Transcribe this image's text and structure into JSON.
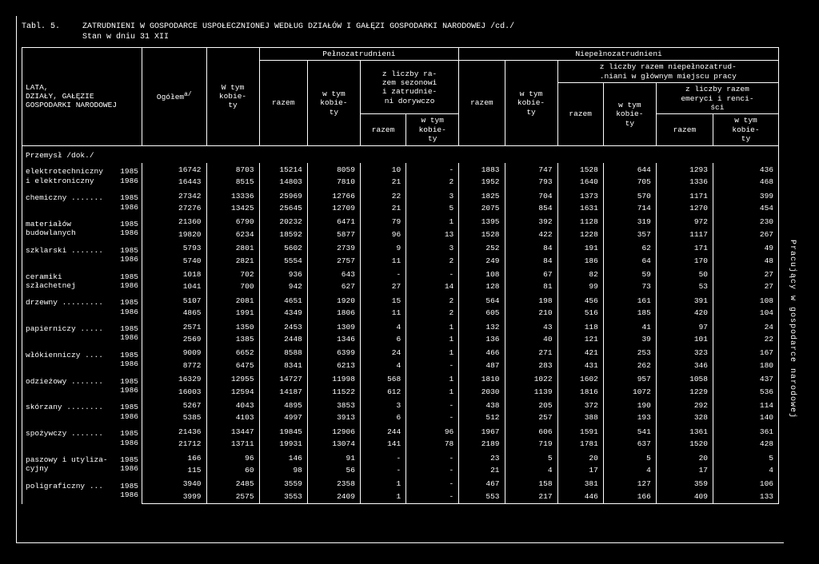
{
  "title_label": "Tabl. 5.",
  "title_text": "ZATRUDNIENI W GOSPODARCE USPOŁECZNIONEJ WEDŁUG DZIAŁÓW I GAŁĘZI GOSPODARKI NARODOWEJ /cd./\nStan w dniu 31 XII",
  "vertical_text": "Pracujący w gospodarce narodowej",
  "stub_header": "LATA,\nDZIAŁY, GAŁĘZIE\nGOSPODARKI NARODOWEJ",
  "h_ogolem": "Ogółem",
  "h_ogolem_sup": "a/",
  "h_wtym_kobiety": "W tym\nkobie-\nty",
  "h_pelno": "Pełnozatrudnieni",
  "h_niepelno": "Niepełnozatrudnieni",
  "h_razem": "razem",
  "h_wtym_kob": "w tym\nkobie-\nty",
  "h_zliczby_sez": "z liczby ra-\nzem sezonowi\ni zatrudnie-\nni dorywczo",
  "h_zliczby_niep": "z liczby razem niepełnozatrud-\n.niani w głównym miejscu pracy",
  "h_zliczby_emer": "z liczby razem\nemeryci i renci-\nści",
  "section": "Przemysł /dok./",
  "rows": [
    {
      "name": "elektrotechniczny\ni elektroniczny",
      "y": [
        "1985",
        "1986"
      ],
      "c": [
        [
          "16742",
          "8703",
          "15214",
          "8059",
          "10",
          "-",
          "1883",
          "747",
          "1528",
          "644",
          "1293",
          "436"
        ],
        [
          "16443",
          "8515",
          "14803",
          "7810",
          "21",
          "2",
          "1952",
          "793",
          "1640",
          "705",
          "1336",
          "468"
        ]
      ]
    },
    {
      "name": "chemiczny .......",
      "y": [
        "1985",
        "1986"
      ],
      "c": [
        [
          "27342",
          "13336",
          "25969",
          "12766",
          "22",
          "3",
          "1825",
          "704",
          "1373",
          "570",
          "1171",
          "399"
        ],
        [
          "27276",
          "13425",
          "25645",
          "12709",
          "21",
          "5",
          "2075",
          "854",
          "1631",
          "714",
          "1270",
          "454"
        ]
      ]
    },
    {
      "name": "materiałów\nbudowlanych",
      "y": [
        "1985",
        "1986"
      ],
      "c": [
        [
          "21360",
          "6790",
          "20232",
          "6471",
          "79",
          "1",
          "1395",
          "392",
          "1128",
          "319",
          "972",
          "230"
        ],
        [
          "19820",
          "6234",
          "18592",
          "5877",
          "96",
          "13",
          "1528",
          "422",
          "1228",
          "357",
          "1117",
          "267"
        ]
      ]
    },
    {
      "name": "szklarski .......",
      "y": [
        "1985",
        "1986"
      ],
      "c": [
        [
          "5793",
          "2801",
          "5602",
          "2739",
          "9",
          "3",
          "252",
          "84",
          "191",
          "62",
          "171",
          "49"
        ],
        [
          "5740",
          "2821",
          "5554",
          "2757",
          "11",
          "2",
          "249",
          "84",
          "186",
          "64",
          "170",
          "48"
        ]
      ]
    },
    {
      "name": "ceramiki\nszłachetnej",
      "y": [
        "1985",
        "1986"
      ],
      "c": [
        [
          "1018",
          "702",
          "936",
          "643",
          "-",
          "-",
          "108",
          "67",
          "82",
          "59",
          "50",
          "27"
        ],
        [
          "1041",
          "700",
          "942",
          "627",
          "27",
          "14",
          "128",
          "81",
          "99",
          "73",
          "53",
          "27"
        ]
      ]
    },
    {
      "name": "drzewny .........",
      "y": [
        "1985",
        "1986"
      ],
      "c": [
        [
          "5107",
          "2081",
          "4651",
          "1920",
          "15",
          "2",
          "564",
          "198",
          "456",
          "161",
          "391",
          "108"
        ],
        [
          "4865",
          "1991",
          "4349",
          "1806",
          "11",
          "2",
          "605",
          "210",
          "516",
          "185",
          "420",
          "104"
        ]
      ]
    },
    {
      "name": "papierniczy .....",
      "y": [
        "1985",
        "1986"
      ],
      "c": [
        [
          "2571",
          "1350",
          "2453",
          "1309",
          "4",
          "1",
          "132",
          "43",
          "118",
          "41",
          "97",
          "24"
        ],
        [
          "2569",
          "1385",
          "2448",
          "1346",
          "6",
          "1",
          "136",
          "40",
          "121",
          "39",
          "101",
          "22"
        ]
      ]
    },
    {
      "name": "włókienniczy ....",
      "y": [
        "1985",
        "1986"
      ],
      "c": [
        [
          "9009",
          "6652",
          "8588",
          "6399",
          "24",
          "1",
          "466",
          "271",
          "421",
          "253",
          "323",
          "167"
        ],
        [
          "8772",
          "6475",
          "8341",
          "6213",
          "4",
          "-",
          "487",
          "283",
          "431",
          "262",
          "346",
          "180"
        ]
      ]
    },
    {
      "name": "odzieżowy .......",
      "y": [
        "1985",
        "1986"
      ],
      "c": [
        [
          "16329",
          "12955",
          "14727",
          "11998",
          "568",
          "1",
          "1810",
          "1022",
          "1602",
          "957",
          "1058",
          "437"
        ],
        [
          "16003",
          "12594",
          "14187",
          "11522",
          "612",
          "1",
          "2030",
          "1139",
          "1816",
          "1072",
          "1229",
          "536"
        ]
      ]
    },
    {
      "name": "skórzany ........",
      "y": [
        "1985",
        "1986"
      ],
      "c": [
        [
          "5267",
          "4043",
          "4895",
          "3853",
          "3",
          "-",
          "438",
          "205",
          "372",
          "190",
          "292",
          "114"
        ],
        [
          "5385",
          "4103",
          "4997",
          "3913",
          "6",
          "-",
          "512",
          "257",
          "388",
          "193",
          "328",
          "140"
        ]
      ]
    },
    {
      "name": "spożywczy .......",
      "y": [
        "1985",
        "1986"
      ],
      "c": [
        [
          "21436",
          "13447",
          "19845",
          "12906",
          "244",
          "96",
          "1967",
          "606",
          "1591",
          "541",
          "1361",
          "361"
        ],
        [
          "21712",
          "13711",
          "19931",
          "13074",
          "141",
          "78",
          "2189",
          "719",
          "1781",
          "637",
          "1520",
          "428"
        ]
      ]
    },
    {
      "name": "paszowy i utyliza-\ncyjny",
      "y": [
        "1985",
        "1986"
      ],
      "c": [
        [
          "166",
          "96",
          "146",
          "91",
          "-",
          "-",
          "23",
          "5",
          "20",
          "5",
          "20",
          "5"
        ],
        [
          "115",
          "60",
          "98",
          "56",
          "-",
          "-",
          "21",
          "4",
          "17",
          "4",
          "17",
          "4"
        ]
      ]
    },
    {
      "name": "poligraficzny ...",
      "y": [
        "1985",
        "1986"
      ],
      "c": [
        [
          "3940",
          "2485",
          "3559",
          "2358",
          "1",
          "-",
          "467",
          "158",
          "381",
          "127",
          "359",
          "106"
        ],
        [
          "3999",
          "2575",
          "3553",
          "2409",
          "1",
          "-",
          "553",
          "217",
          "446",
          "166",
          "409",
          "133"
        ]
      ]
    }
  ]
}
